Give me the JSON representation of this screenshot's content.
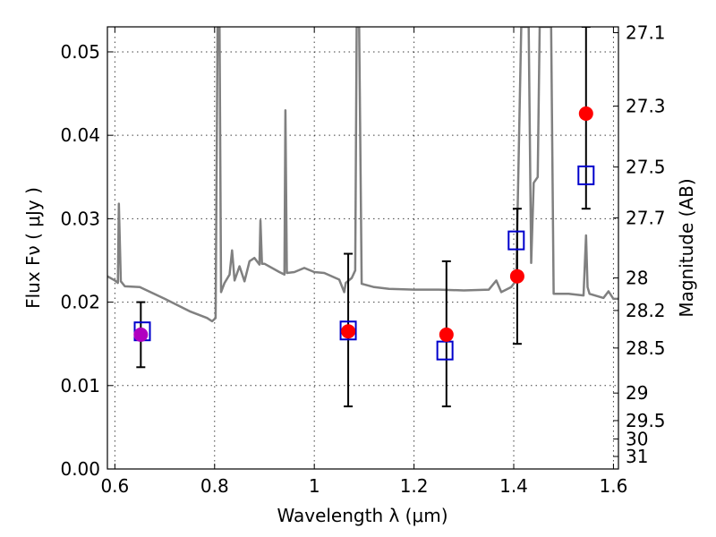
{
  "chart_data": {
    "type": "scatter",
    "xlabel": "Wavelength  λ (μm)",
    "ylabel": "Flux  Fν  ( μJy )",
    "ylabel_right": "Magnitude (AB)",
    "xlim": [
      0.585,
      1.61
    ],
    "ylim": [
      0.0,
      0.053
    ],
    "x_ticks": [
      0.6,
      0.8,
      1.0,
      1.2,
      1.4,
      1.6
    ],
    "x_tick_labels": [
      "0.6",
      "0.8",
      "1",
      "1.2",
      "1.4",
      "1.6"
    ],
    "y_ticks": [
      0.0,
      0.01,
      0.02,
      0.03,
      0.04,
      0.05
    ],
    "y_tick_labels": [
      "0.00",
      "0.01",
      "0.02",
      "0.03",
      "0.04",
      "0.05"
    ],
    "right_ticks": [
      {
        "label": "27.1",
        "flux": 0.0523
      },
      {
        "label": "27.3",
        "flux": 0.0435
      },
      {
        "label": "27.5",
        "flux": 0.0362
      },
      {
        "label": "27.7",
        "flux": 0.0301
      },
      {
        "label": "28",
        "flux": 0.0229
      },
      {
        "label": "28.2",
        "flux": 0.019
      },
      {
        "label": "28.5",
        "flux": 0.0145
      },
      {
        "label": "29",
        "flux": 0.0091
      },
      {
        "label": "29.5",
        "flux": 0.0058
      },
      {
        "label": "30",
        "flux": 0.0036
      },
      {
        "label": "31",
        "flux": 0.0015
      }
    ],
    "grid": true,
    "series": [
      {
        "kind": "line",
        "color": "#808080",
        "points": [
          [
            0.585,
            0.0231
          ],
          [
            0.6,
            0.0226
          ],
          [
            0.606,
            0.0223
          ],
          [
            0.608,
            0.0318
          ],
          [
            0.612,
            0.0225
          ],
          [
            0.62,
            0.0219
          ],
          [
            0.65,
            0.0218
          ],
          [
            0.7,
            0.0204
          ],
          [
            0.75,
            0.0189
          ],
          [
            0.785,
            0.0181
          ],
          [
            0.795,
            0.0177
          ],
          [
            0.802,
            0.0181
          ],
          [
            0.806,
            0.053
          ],
          [
            0.81,
            0.053
          ],
          [
            0.813,
            0.0212
          ],
          [
            0.82,
            0.0223
          ],
          [
            0.83,
            0.0233
          ],
          [
            0.835,
            0.0262
          ],
          [
            0.84,
            0.0226
          ],
          [
            0.85,
            0.0243
          ],
          [
            0.86,
            0.0225
          ],
          [
            0.87,
            0.0249
          ],
          [
            0.88,
            0.0253
          ],
          [
            0.89,
            0.0245
          ],
          [
            0.892,
            0.0298
          ],
          [
            0.895,
            0.0246
          ],
          [
            0.9,
            0.0246
          ],
          [
            0.93,
            0.0236
          ],
          [
            0.94,
            0.0233
          ],
          [
            0.942,
            0.043
          ],
          [
            0.945,
            0.0235
          ],
          [
            0.96,
            0.0236
          ],
          [
            0.98,
            0.0241
          ],
          [
            1.0,
            0.0236
          ],
          [
            1.02,
            0.0235
          ],
          [
            1.05,
            0.0227
          ],
          [
            1.06,
            0.0212
          ],
          [
            1.063,
            0.0223
          ],
          [
            1.075,
            0.0229
          ],
          [
            1.082,
            0.0238
          ],
          [
            1.085,
            0.053
          ],
          [
            1.09,
            0.053
          ],
          [
            1.095,
            0.0222
          ],
          [
            1.12,
            0.0218
          ],
          [
            1.15,
            0.0216
          ],
          [
            1.2,
            0.0215
          ],
          [
            1.25,
            0.0215
          ],
          [
            1.3,
            0.0214
          ],
          [
            1.35,
            0.0215
          ],
          [
            1.365,
            0.0226
          ],
          [
            1.375,
            0.0212
          ],
          [
            1.395,
            0.0218
          ],
          [
            1.405,
            0.0226
          ],
          [
            1.415,
            0.053
          ],
          [
            1.43,
            0.053
          ],
          [
            1.435,
            0.0247
          ],
          [
            1.44,
            0.0343
          ],
          [
            1.448,
            0.035
          ],
          [
            1.452,
            0.053
          ],
          [
            1.475,
            0.053
          ],
          [
            1.48,
            0.021
          ],
          [
            1.51,
            0.021
          ],
          [
            1.54,
            0.0208
          ],
          [
            1.545,
            0.028
          ],
          [
            1.548,
            0.0218
          ],
          [
            1.552,
            0.021
          ],
          [
            1.58,
            0.0205
          ],
          [
            1.59,
            0.0213
          ],
          [
            1.6,
            0.0204
          ],
          [
            1.61,
            0.0204
          ]
        ]
      },
      {
        "kind": "model_points",
        "marker": "open-square",
        "color": "#0000cc",
        "points": [
          [
            0.655,
            0.0165
          ],
          [
            1.068,
            0.0166
          ],
          [
            1.262,
            0.0142
          ],
          [
            1.405,
            0.0274
          ],
          [
            1.545,
            0.0352
          ]
        ]
      },
      {
        "kind": "observed_points",
        "marker": "filled-circle",
        "color": "#ff0000",
        "points": [
          {
            "x": 0.652,
            "y": 0.0161,
            "err": [
              0.0122,
              0.02
            ],
            "color": "#b000c0"
          },
          {
            "x": 1.068,
            "y": 0.0165,
            "err": [
              0.0075,
              0.0258
            ]
          },
          {
            "x": 1.265,
            "y": 0.0161,
            "err": [
              0.0075,
              0.0249
            ]
          },
          {
            "x": 1.407,
            "y": 0.0231,
            "err": [
              0.015,
              0.0312
            ]
          },
          {
            "x": 1.545,
            "y": 0.0426,
            "err": [
              0.0312,
              0.053
            ]
          }
        ]
      }
    ]
  }
}
